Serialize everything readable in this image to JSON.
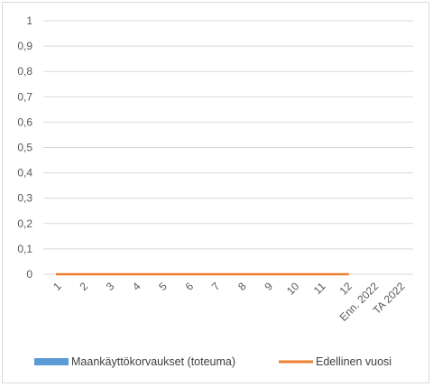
{
  "chart_data": {
    "type": "bar",
    "categories": [
      "1",
      "2",
      "3",
      "4",
      "5",
      "6",
      "7",
      "8",
      "9",
      "10",
      "11",
      "12",
      "Enn. 2022",
      "TA 2022"
    ],
    "series": [
      {
        "name": "Maankäyttökorvaukset (toteuma)",
        "kind": "bar",
        "color": "#5b9bd5",
        "values": [
          0,
          0,
          0,
          0,
          0,
          0,
          0,
          0,
          0,
          0,
          0,
          0,
          null,
          null
        ]
      },
      {
        "name": "Edellinen vuosi",
        "kind": "line",
        "color": "#ed7d31",
        "values": [
          0,
          0,
          0,
          0,
          0,
          0,
          0,
          0,
          0,
          0,
          0,
          0,
          null,
          null
        ]
      }
    ],
    "y_ticks": [
      "0",
      "0,1",
      "0,2",
      "0,3",
      "0,4",
      "0,5",
      "0,6",
      "0,7",
      "0,8",
      "0,9",
      "1"
    ],
    "ylim": [
      0,
      1
    ],
    "grid": true,
    "legend_position": "bottom"
  }
}
